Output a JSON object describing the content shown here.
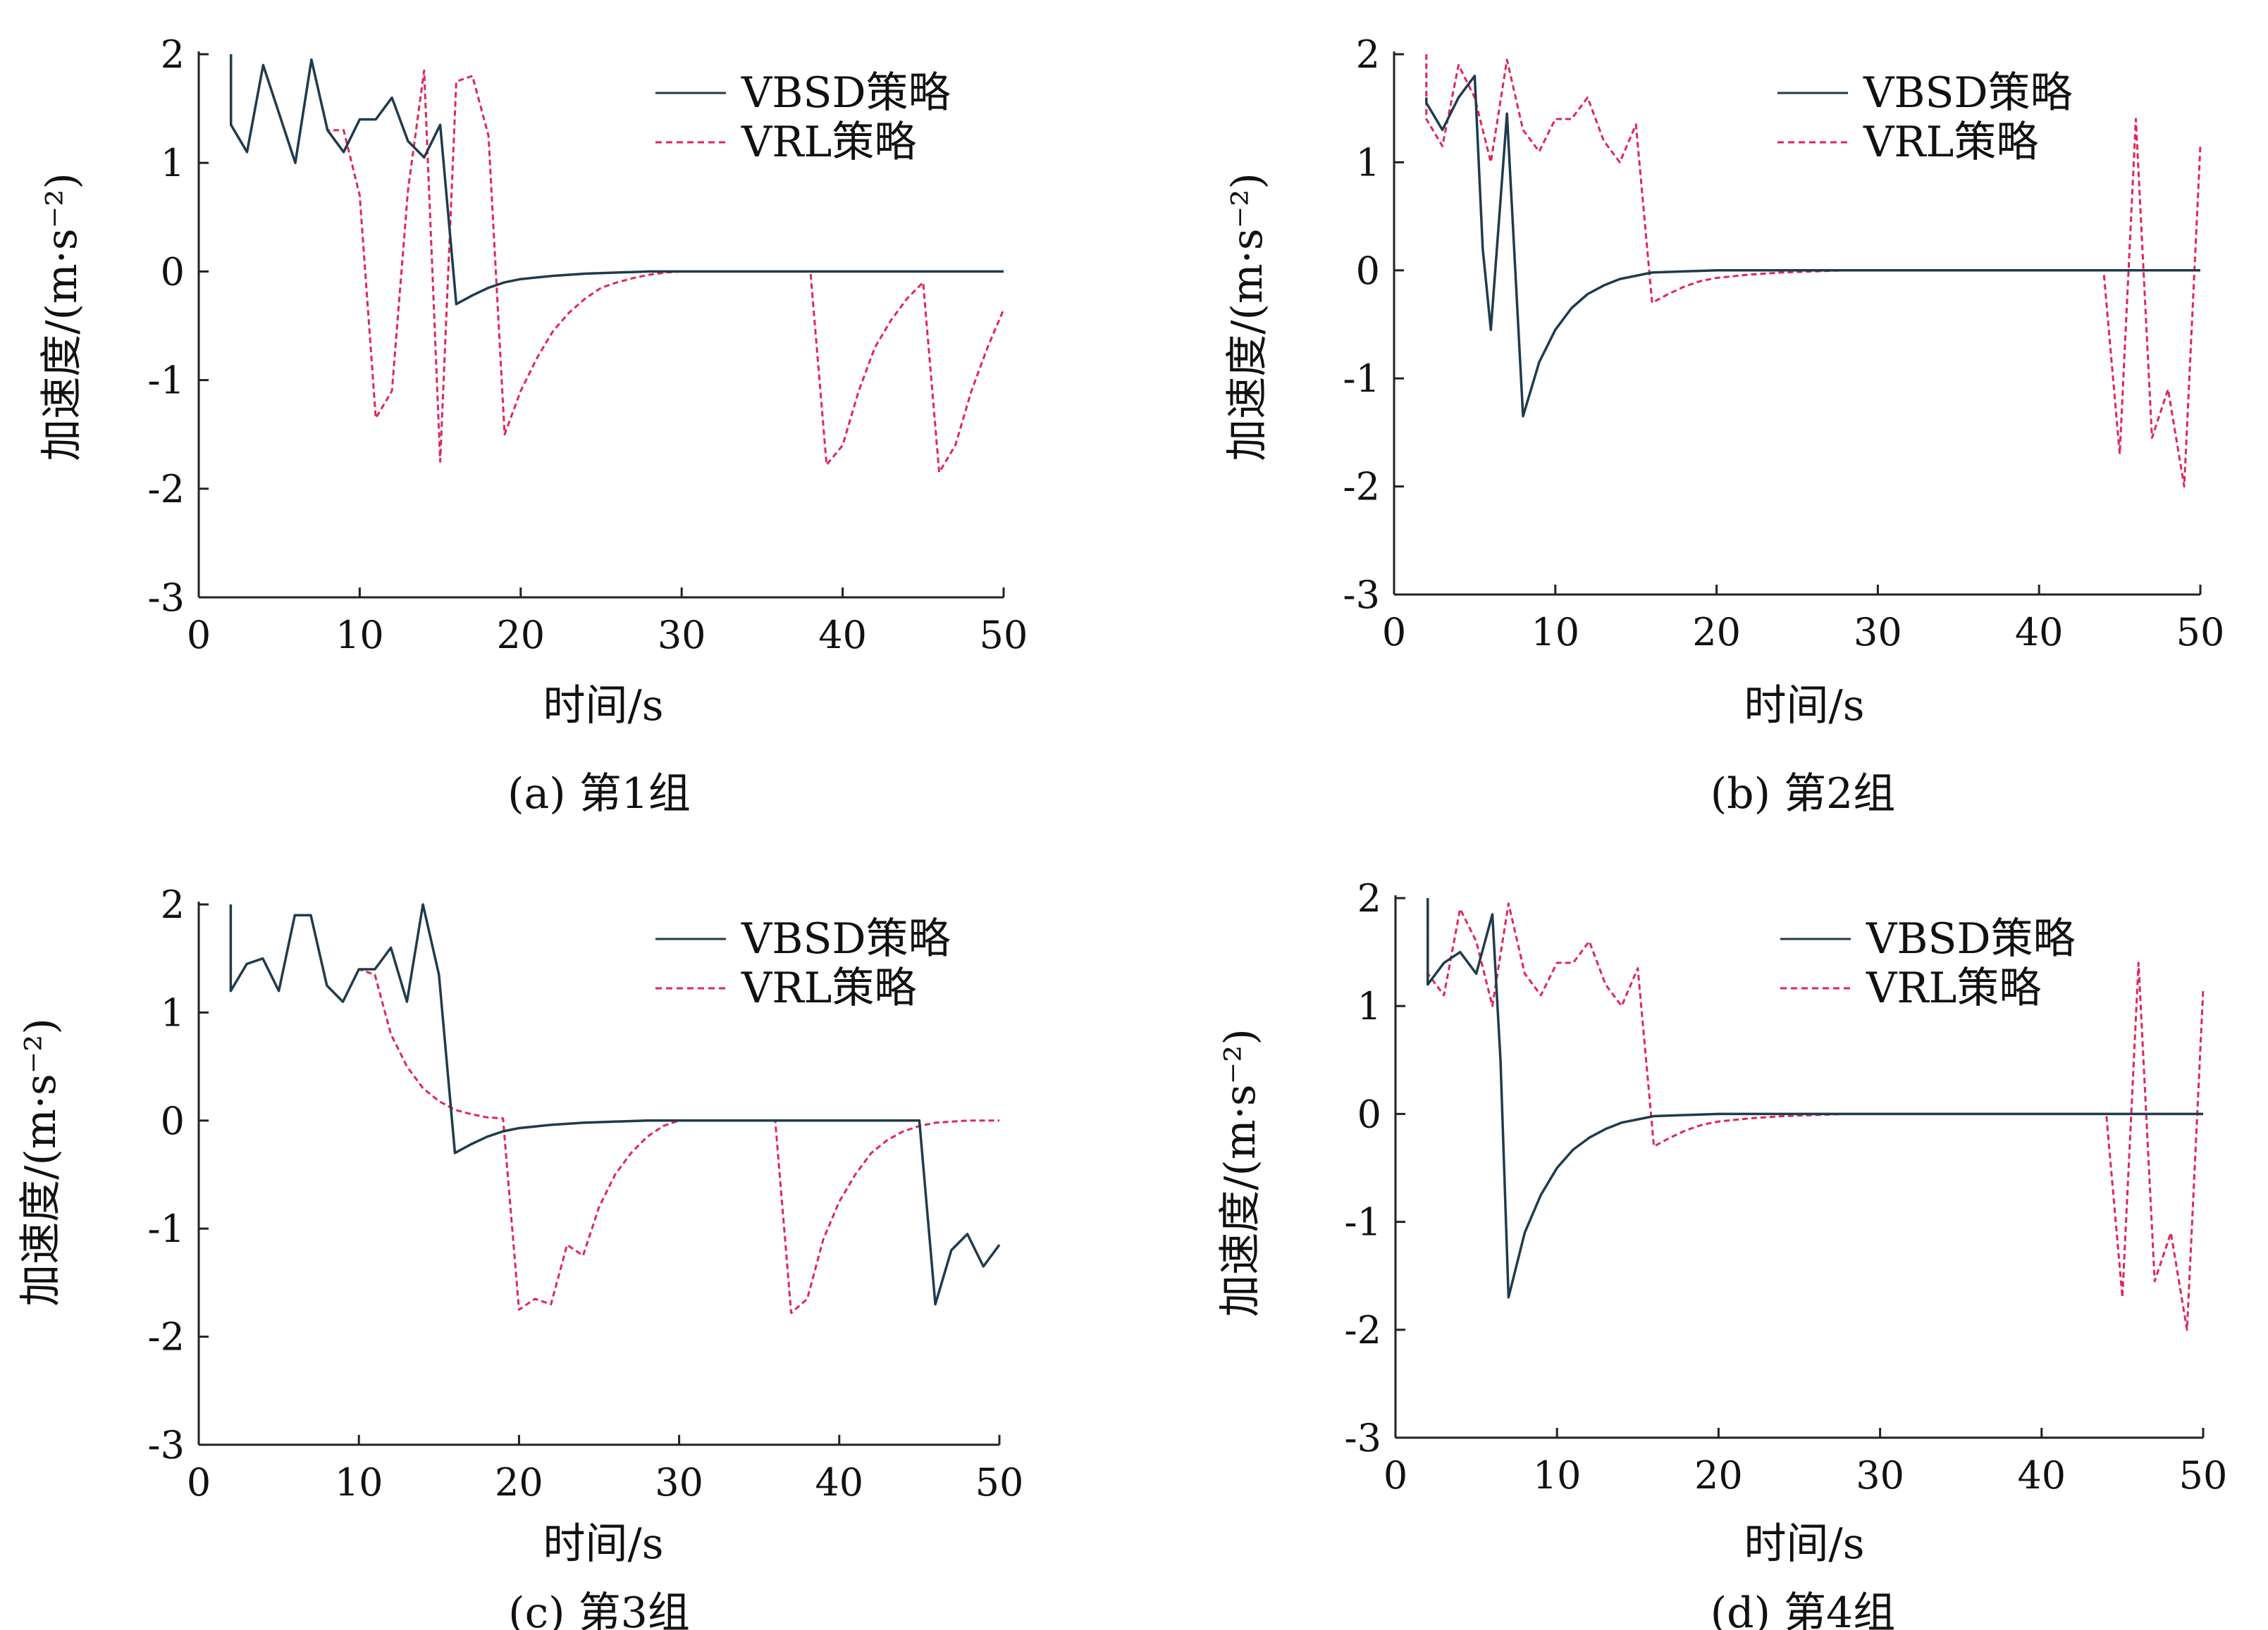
{
  "chart_data": [
    {
      "type": "line",
      "caption": "(a) 第1组",
      "xlabel": "时间/s",
      "ylabel": "加速度/(m·s⁻²)",
      "xlim": [
        0,
        50
      ],
      "ylim": [
        -3,
        2
      ],
      "xticks": [
        0,
        10,
        20,
        30,
        40,
        50
      ],
      "yticks": [
        -3,
        -2,
        -1,
        0,
        1,
        2
      ],
      "legend_position": "top-right",
      "series": [
        {
          "name": "VBSD策略",
          "color": "#1f3b4d",
          "style": "solid",
          "x": [
            2,
            2,
            3,
            4,
            5,
            6,
            7,
            8,
            9,
            10,
            11,
            12,
            13,
            14,
            15,
            16,
            17,
            18,
            19,
            20,
            22,
            24,
            26,
            28,
            30,
            35,
            40,
            45,
            50
          ],
          "y": [
            2,
            1.35,
            1.1,
            1.9,
            1.45,
            1.0,
            1.95,
            1.3,
            1.1,
            1.4,
            1.4,
            1.6,
            1.2,
            1.05,
            1.35,
            -0.3,
            -0.22,
            -0.15,
            -0.1,
            -0.07,
            -0.04,
            -0.02,
            -0.01,
            0,
            0,
            0,
            0,
            0,
            0
          ]
        },
        {
          "name": "VRL策略",
          "color": "#e0265a",
          "style": "dashed",
          "x": [
            2,
            2,
            3,
            4,
            5,
            6,
            7,
            8,
            9,
            10,
            11,
            12,
            13,
            14,
            15,
            16,
            17,
            18,
            19,
            20,
            21,
            22,
            23,
            24,
            25,
            26,
            27,
            28,
            29,
            30,
            32,
            35,
            38,
            39,
            40,
            41,
            42,
            43,
            44,
            45,
            46,
            47,
            48,
            49,
            50
          ],
          "y": [
            2,
            1.35,
            1.1,
            1.9,
            1.45,
            1.0,
            1.95,
            1.3,
            1.3,
            0.7,
            -1.35,
            -1.1,
            0.75,
            1.85,
            -1.75,
            1.75,
            1.8,
            1.25,
            -1.5,
            -1.1,
            -0.8,
            -0.55,
            -0.38,
            -0.25,
            -0.15,
            -0.1,
            -0.06,
            -0.03,
            -0.01,
            0,
            0,
            0,
            0,
            -1.78,
            -1.6,
            -1.1,
            -0.7,
            -0.45,
            -0.25,
            -0.1,
            -1.85,
            -1.6,
            -1.1,
            -0.7,
            -0.35
          ]
        }
      ]
    },
    {
      "type": "line",
      "caption": "(b) 第2组",
      "xlabel": "时间/s",
      "ylabel": "加速度/(m·s⁻²)",
      "xlim": [
        0,
        50
      ],
      "ylim": [
        -3,
        2
      ],
      "xticks": [
        0,
        10,
        20,
        30,
        40,
        50
      ],
      "yticks": [
        -3,
        -2,
        -1,
        0,
        1,
        2
      ],
      "legend_position": "top-right",
      "series": [
        {
          "name": "VBSD策略",
          "color": "#1f3b4d",
          "style": "solid",
          "x": [
            2,
            2,
            3,
            4,
            5,
            5.5,
            6,
            7,
            8,
            9,
            10,
            11,
            12,
            13,
            14,
            15,
            16,
            18,
            20,
            25,
            30,
            35,
            40,
            45,
            50
          ],
          "y": [
            1.6,
            1.55,
            1.3,
            1.6,
            1.8,
            0.2,
            -0.55,
            1.45,
            -1.35,
            -0.85,
            -0.55,
            -0.35,
            -0.22,
            -0.14,
            -0.08,
            -0.05,
            -0.02,
            -0.01,
            0,
            0,
            0,
            0,
            0,
            0,
            0
          ]
        },
        {
          "name": "VRL策略",
          "color": "#e0265a",
          "style": "dashed",
          "x": [
            2,
            2,
            3,
            4,
            5,
            6,
            7,
            8,
            9,
            10,
            11,
            12,
            13,
            14,
            15,
            16,
            17,
            18,
            19,
            20,
            22,
            24,
            26,
            28,
            30,
            35,
            40,
            44,
            45,
            46,
            47,
            48,
            49,
            50
          ],
          "y": [
            2,
            1.4,
            1.15,
            1.9,
            1.6,
            1.0,
            1.95,
            1.3,
            1.1,
            1.4,
            1.4,
            1.6,
            1.2,
            1.0,
            1.35,
            -0.3,
            -0.22,
            -0.15,
            -0.1,
            -0.07,
            -0.04,
            -0.02,
            -0.01,
            0,
            0,
            0,
            0,
            0,
            -1.7,
            1.4,
            -1.55,
            -1.1,
            -2.0,
            1.15
          ]
        }
      ]
    },
    {
      "type": "line",
      "caption": "(c) 第3组",
      "xlabel": "时间/s",
      "ylabel": "加速度/(m·s⁻²)",
      "xlim": [
        0,
        50
      ],
      "ylim": [
        -3,
        2
      ],
      "xticks": [
        0,
        10,
        20,
        30,
        40,
        50
      ],
      "yticks": [
        -3,
        -2,
        -1,
        0,
        1,
        2
      ],
      "legend_position": "top-right",
      "series": [
        {
          "name": "VBSD策略",
          "color": "#1f3b4d",
          "style": "solid",
          "x": [
            2,
            2,
            3,
            4,
            5,
            6,
            7,
            8,
            9,
            10,
            11,
            12,
            13,
            14,
            15,
            16,
            17,
            18,
            19,
            20,
            22,
            24,
            26,
            28,
            30,
            35,
            40,
            45,
            46,
            47,
            48,
            49,
            50
          ],
          "y": [
            2,
            1.2,
            1.45,
            1.5,
            1.2,
            1.9,
            1.9,
            1.25,
            1.1,
            1.4,
            1.4,
            1.6,
            1.1,
            2.0,
            1.35,
            -0.3,
            -0.22,
            -0.15,
            -0.1,
            -0.07,
            -0.04,
            -0.02,
            -0.01,
            0,
            0,
            0,
            0,
            0,
            -1.7,
            -1.2,
            -1.05,
            -1.35,
            -1.15
          ]
        },
        {
          "name": "VRL策略",
          "color": "#e0265a",
          "style": "dashed",
          "x": [
            2,
            2,
            3,
            4,
            5,
            6,
            7,
            8,
            9,
            10,
            11,
            12,
            13,
            14,
            15,
            16,
            17,
            18,
            19,
            20,
            21,
            22,
            23,
            24,
            25,
            26,
            27,
            28,
            29,
            30,
            32,
            34,
            36,
            37,
            38,
            39,
            40,
            41,
            42,
            43,
            44,
            45,
            46,
            48,
            50
          ],
          "y": [
            2,
            1.2,
            1.45,
            1.5,
            1.2,
            1.9,
            1.9,
            1.25,
            1.1,
            1.4,
            1.35,
            0.8,
            0.5,
            0.3,
            0.18,
            0.1,
            0.06,
            0.03,
            0.02,
            -1.75,
            -1.65,
            -1.7,
            -1.15,
            -1.25,
            -0.8,
            -0.5,
            -0.3,
            -0.15,
            -0.05,
            0,
            0,
            0,
            0,
            -1.78,
            -1.65,
            -1.1,
            -0.75,
            -0.5,
            -0.3,
            -0.18,
            -0.1,
            -0.05,
            -0.02,
            0,
            0
          ]
        }
      ]
    },
    {
      "type": "line",
      "caption": "(d) 第4组",
      "xlabel": "时间/s",
      "ylabel": "加速度/(m·s⁻²)",
      "xlim": [
        0,
        50
      ],
      "ylim": [
        -3,
        2
      ],
      "xticks": [
        0,
        10,
        20,
        30,
        40,
        50
      ],
      "yticks": [
        -3,
        -2,
        -1,
        0,
        1,
        2
      ],
      "legend_position": "top-right",
      "series": [
        {
          "name": "VBSD策略",
          "color": "#1f3b4d",
          "style": "solid",
          "x": [
            2,
            2,
            3,
            4,
            5,
            6,
            6.5,
            7,
            8,
            9,
            10,
            11,
            12,
            13,
            14,
            15,
            16,
            18,
            20,
            25,
            30,
            35,
            40,
            45,
            50
          ],
          "y": [
            2,
            1.2,
            1.4,
            1.5,
            1.3,
            1.85,
            0.5,
            -1.7,
            -1.1,
            -0.75,
            -0.5,
            -0.33,
            -0.22,
            -0.14,
            -0.08,
            -0.05,
            -0.02,
            -0.01,
            0,
            0,
            0,
            0,
            0,
            0,
            0
          ]
        },
        {
          "name": "VRL策略",
          "color": "#e0265a",
          "style": "dashed",
          "x": [
            2,
            2,
            3,
            4,
            5,
            6,
            7,
            8,
            9,
            10,
            11,
            12,
            13,
            14,
            15,
            16,
            17,
            18,
            19,
            20,
            22,
            24,
            26,
            28,
            30,
            35,
            40,
            44,
            45,
            46,
            47,
            48,
            49,
            50
          ],
          "y": [
            2,
            1.3,
            1.1,
            1.9,
            1.6,
            1.0,
            1.95,
            1.3,
            1.1,
            1.4,
            1.4,
            1.6,
            1.2,
            1.0,
            1.35,
            -0.3,
            -0.22,
            -0.15,
            -0.1,
            -0.07,
            -0.04,
            -0.02,
            -0.01,
            0,
            0,
            0,
            0,
            0,
            -1.7,
            1.4,
            -1.55,
            -1.1,
            -2.0,
            1.15
          ]
        }
      ]
    }
  ]
}
